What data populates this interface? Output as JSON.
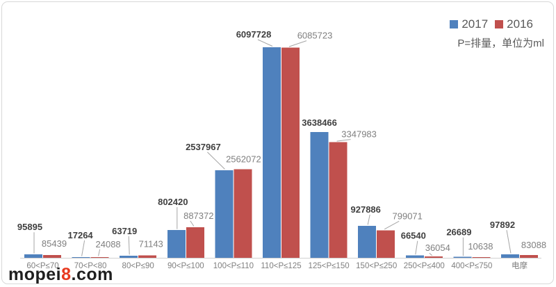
{
  "legend": {
    "items": [
      {
        "label": "2017",
        "color": "#4f81bd"
      },
      {
        "label": "2016",
        "color": "#c0504d"
      }
    ]
  },
  "note": "P=排量，单位为ml",
  "watermark": {
    "prefix": "mopei",
    "accent": "8",
    "suffix": ".com"
  },
  "chart_data": {
    "type": "bar",
    "title": "",
    "annotation": "P=排量，单位为ml",
    "legend_position": "top-right",
    "grid": false,
    "axes_hidden": true,
    "ylim": [
      0,
      6097728
    ],
    "categories": [
      "60<P≤70",
      "70<P<80",
      "80<P≤90",
      "90<P≤100",
      "100<P≤110",
      "110<P≤125",
      "125<P≤150",
      "150<P≤250",
      "250<P≤400",
      "400<P≤750",
      "电摩"
    ],
    "series": [
      {
        "name": "2017",
        "color": "#4f81bd",
        "values": [
          95895,
          17264,
          63719,
          802420,
          2537967,
          6097728,
          3638466,
          927886,
          66540,
          26689,
          97892
        ]
      },
      {
        "name": "2016",
        "color": "#c0504d",
        "values": [
          85439,
          24088,
          71143,
          887372,
          2562072,
          6085723,
          3347983,
          799071,
          36054,
          10638,
          83088
        ]
      }
    ]
  }
}
